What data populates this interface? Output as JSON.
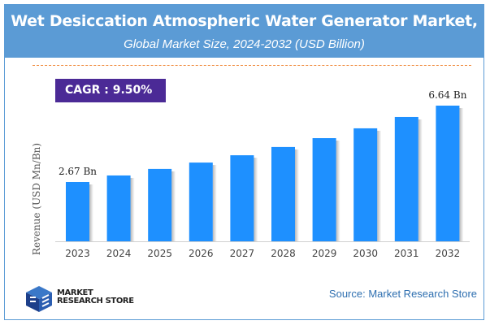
{
  "header": {
    "title": "Wet Desiccation Atmospheric Water Generator Market,",
    "subtitle": "Global Market Size, 2024-2032 (USD Billion)"
  },
  "cagr": "CAGR : 9.50%",
  "colors": {
    "header": "#5b9bd5",
    "bar": "#1e90ff",
    "cagr_box": "#4b2a96",
    "dash": "#f08a3c"
  },
  "chart_data": {
    "type": "bar",
    "categories": [
      "2023",
      "2024",
      "2025",
      "2026",
      "2027",
      "2028",
      "2029",
      "2030",
      "2031",
      "2032"
    ],
    "values": [
      2.67,
      3.01,
      3.35,
      3.68,
      4.06,
      4.49,
      4.95,
      5.46,
      6.05,
      6.64
    ],
    "data_labels": {
      "0": "2.67 Bn",
      "9": "6.64 Bn"
    },
    "ylabel": "Revenue (USD Mn/Bn)",
    "xlabel": "",
    "grid": false,
    "legend": "none"
  },
  "footer": {
    "logo_line1": "MARKET",
    "logo_line2": "RESEARCH STORE",
    "source": "Source: Market Research Store"
  }
}
